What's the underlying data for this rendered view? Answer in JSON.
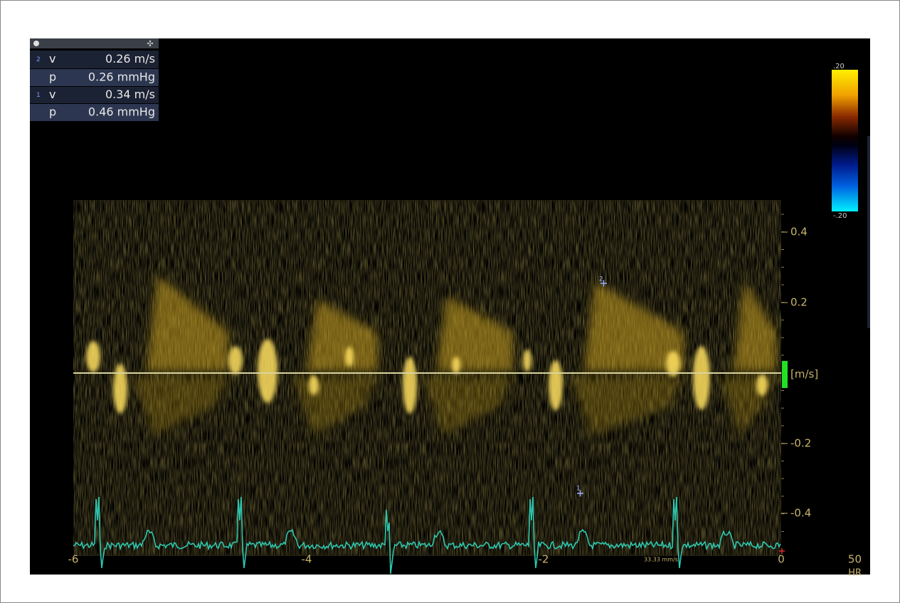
{
  "measurements": {
    "rows": [
      {
        "index": "2",
        "label": "v",
        "value": "0.26 m/s"
      },
      {
        "label": "p",
        "value": "0.26 mmHg"
      },
      {
        "index": "1",
        "label": "v",
        "value": "0.34 m/s"
      },
      {
        "label": "p",
        "value": "0.46 mmHg"
      }
    ]
  },
  "color_scale": {
    "top": ".20",
    "bottom": "-.20"
  },
  "velocity_axis": {
    "ticks": [
      "0.4",
      "0.2",
      "-0.2",
      "-0.4"
    ],
    "unit": "[m/s]"
  },
  "time_axis": {
    "ticks": [
      "-6",
      "-4",
      "-2",
      "0"
    ],
    "sweep_speed": "33.33 mm/s"
  },
  "cursors": [
    "2",
    "1"
  ],
  "heart_rate": {
    "value": "50",
    "label": "HR"
  }
}
